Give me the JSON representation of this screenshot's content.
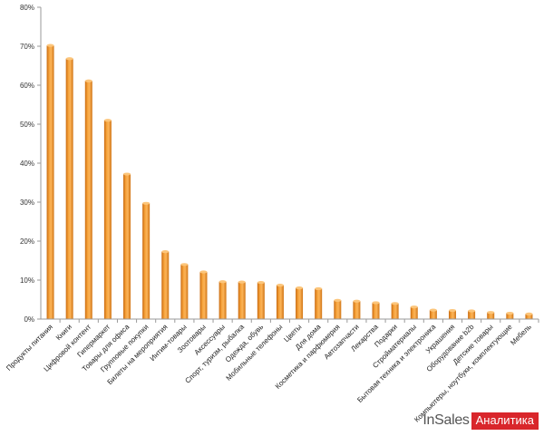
{
  "chart_data": {
    "type": "bar",
    "title": "",
    "xlabel": "",
    "ylabel": "",
    "ylim": [
      0,
      80
    ],
    "yticks": [
      "0%",
      "10%",
      "20%",
      "30%",
      "40%",
      "50%",
      "60%",
      "70%",
      "80%"
    ],
    "grid": false,
    "legend": "none",
    "bar_color": "#f29a2e",
    "categories": [
      "Продукты питания",
      "Книги",
      "Цифровой контент",
      "Гипермаркет",
      "Товары для офиса",
      "Групповые покупки",
      "Билеты на мероприятия",
      "Интим-товары",
      "Зоотовары",
      "Аксессуары",
      "Спорт, туризм, рыбалка",
      "Одежда, обувь",
      "Мобильные телефоны",
      "Цветы",
      "Для дома",
      "Косметика и парфюмерия",
      "Автозапчасти",
      "Лекарства",
      "Подарки",
      "Стройматериалы",
      "Бытовая техника и электроника",
      "Украшения",
      "Оборудование b2b",
      "Детские товары",
      "Компьютеры, ноутбуки, комплектующие",
      "Мебель"
    ],
    "values": [
      70.2,
      66.8,
      61.1,
      51,
      37.2,
      29.7,
      17.3,
      14,
      12.1,
      9.6,
      9.5,
      9.4,
      8.7,
      8,
      7.8,
      4.8,
      4.6,
      4.2,
      4,
      3.1,
      2.3,
      2.2,
      2.1,
      1.7,
      1.5,
      1.3
    ]
  },
  "branding": {
    "prefix": "InSales",
    "label": "Аналитика",
    "accent": "#d9262b"
  }
}
